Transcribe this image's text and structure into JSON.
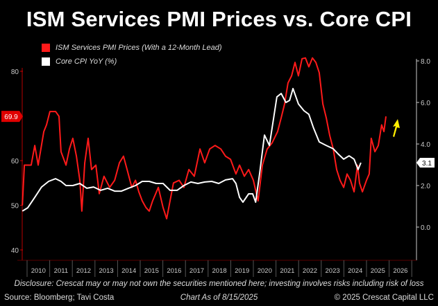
{
  "title": "ISM Services PMI Prices vs. Core CPI",
  "legend": [
    {
      "label": "ISM Services PMI Prices (With a 12-Month Lead)",
      "color": "#ff1a1a"
    },
    {
      "label": "Core CPI YoY (%)",
      "color": "#ffffff"
    }
  ],
  "footer": {
    "disclosure": "Disclosure: Crescat may or may not own the securities mentioned here; investing involves risks including risk of loss",
    "source": "Source: Bloomberg; Tavi Costa",
    "date": "Chart As of 8/15/2025",
    "copyright": "© 2025 Crescat Capital LLC"
  },
  "chart_data": {
    "type": "line",
    "title": "ISM Services PMI Prices vs. Core CPI",
    "x_ticks": [
      "2010",
      "2011",
      "2012",
      "2013",
      "2014",
      "2015",
      "2016",
      "2017",
      "2018",
      "2019",
      "2020",
      "2021",
      "2022",
      "2023",
      "2024",
      "2025",
      "2026"
    ],
    "xlim": [
      2009.8,
      2027
    ],
    "left_axis": {
      "ticks": [
        "80",
        "60",
        "50",
        "40"
      ],
      "tick_values": [
        80,
        60,
        50,
        40
      ],
      "ylim": [
        36,
        83.5
      ],
      "last_value_label": "69.9",
      "last_value": 69.9
    },
    "right_axis": {
      "ticks": [
        "8.0",
        "6.0",
        "4.0",
        "2.0",
        "0.0"
      ],
      "tick_values": [
        8,
        6,
        4,
        2,
        0
      ],
      "last_value_label": "3.1",
      "last_value": 3.1
    },
    "annotation": "yellow-up-arrow",
    "series": [
      {
        "name": "ISM Services PMI Prices (With a 12-Month Lead)",
        "axis": "left",
        "color": "#ff1a1a",
        "x": [
          2009.79,
          2009.88,
          2010.18,
          2010.34,
          2010.49,
          2010.74,
          2010.86,
          2011.01,
          2011.26,
          2011.41,
          2011.5,
          2011.72,
          2011.87,
          2012.02,
          2012.18,
          2012.33,
          2012.42,
          2012.55,
          2012.7,
          2012.85,
          2013.04,
          2013.19,
          2013.4,
          2013.65,
          2013.87,
          2014.08,
          2014.26,
          2014.42,
          2014.63,
          2014.79,
          2014.94,
          2015.09,
          2015.25,
          2015.4,
          2015.55,
          2015.8,
          2016.01,
          2016.17,
          2016.32,
          2016.47,
          2016.72,
          2016.93,
          2017.15,
          2017.39,
          2017.64,
          2017.85,
          2018.07,
          2018.31,
          2018.56,
          2018.77,
          2018.99,
          2019.23,
          2019.39,
          2019.6,
          2019.79,
          2020.0,
          2020.21,
          2020.4,
          2020.61,
          2020.83,
          2021.07,
          2021.23,
          2021.38,
          2021.53,
          2021.69,
          2021.84,
          2021.99,
          2022.15,
          2022.3,
          2022.45,
          2022.61,
          2022.76,
          2022.91,
          2023.07,
          2023.22,
          2023.37,
          2023.53,
          2023.68,
          2023.83,
          2023.99,
          2024.14,
          2024.29,
          2024.45,
          2024.6,
          2024.69,
          2024.82,
          2025.0,
          2025.12,
          2025.21,
          2025.37,
          2025.52,
          2025.67,
          2025.77,
          2025.86
        ],
        "y": [
          50,
          59,
          59,
          63.4,
          59,
          66.5,
          68,
          71,
          71,
          69.9,
          62,
          59,
          62.6,
          65,
          61,
          55.6,
          48.7,
          59.5,
          65,
          58,
          59,
          52.6,
          56.5,
          54,
          55.6,
          59.5,
          61,
          58,
          54,
          55.6,
          53,
          51,
          49.5,
          48.7,
          51,
          54,
          49.5,
          47,
          51,
          55,
          55.6,
          54,
          58,
          56.5,
          62.6,
          59.5,
          62.6,
          63.4,
          62.6,
          61,
          60.3,
          57,
          59,
          56.5,
          58,
          55.6,
          51,
          59,
          62.6,
          64,
          66.5,
          69.6,
          72.7,
          77.4,
          79,
          82,
          79,
          82.8,
          83,
          81,
          83,
          82,
          79.7,
          72.7,
          69.6,
          65.7,
          62.6,
          58,
          55.6,
          54,
          57,
          55.6,
          53,
          59,
          55,
          53,
          55.6,
          57,
          65,
          62,
          63.4,
          68,
          66.5,
          69.9
        ]
      },
      {
        "name": "Core CPI YoY (%)",
        "axis": "right",
        "color": "#ffffff",
        "x": [
          2009.79,
          2010.03,
          2010.34,
          2010.64,
          2010.95,
          2011.26,
          2011.5,
          2011.72,
          2012.02,
          2012.33,
          2012.64,
          2012.94,
          2013.25,
          2013.56,
          2013.87,
          2014.17,
          2014.48,
          2014.79,
          2015.09,
          2015.4,
          2015.71,
          2016.01,
          2016.32,
          2016.63,
          2016.93,
          2017.24,
          2017.55,
          2017.85,
          2018.16,
          2018.47,
          2018.77,
          2019.08,
          2019.23,
          2019.39,
          2019.54,
          2019.79,
          2019.97,
          2020.1,
          2020.28,
          2020.49,
          2020.71,
          2020.9,
          2021.04,
          2021.23,
          2021.44,
          2021.6,
          2021.75,
          2021.99,
          2022.24,
          2022.45,
          2022.66,
          2022.91,
          2023.22,
          2023.53,
          2023.74,
          2023.99,
          2024.23,
          2024.45,
          2024.63,
          2024.75
        ],
        "y": [
          0.77,
          0.93,
          1.43,
          1.93,
          2.2,
          2.33,
          2.2,
          2.0,
          2.0,
          2.1,
          1.87,
          1.93,
          1.77,
          1.87,
          1.73,
          1.73,
          1.87,
          2.0,
          2.2,
          2.2,
          2.1,
          2.1,
          1.77,
          1.77,
          2.0,
          2.17,
          2.1,
          2.17,
          2.2,
          2.1,
          2.27,
          2.33,
          2.1,
          1.43,
          1.2,
          1.6,
          1.6,
          1.2,
          2.6,
          4.43,
          3.93,
          5.27,
          6.27,
          6.43,
          6.0,
          6.1,
          6.67,
          5.93,
          5.6,
          5.43,
          4.77,
          4.1,
          3.93,
          3.77,
          3.53,
          3.27,
          3.43,
          3.27,
          2.77,
          3.1
        ]
      }
    ]
  }
}
